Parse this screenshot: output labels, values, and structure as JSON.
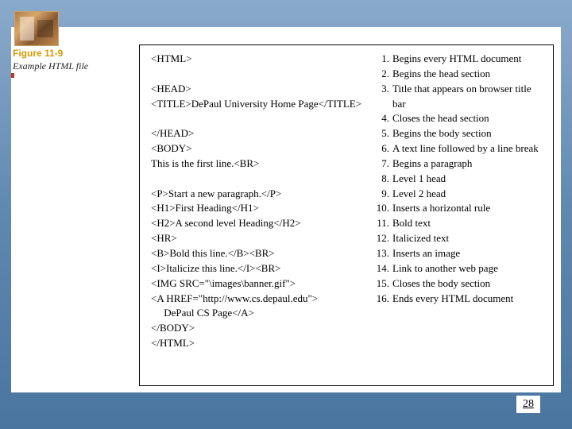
{
  "figure": {
    "label": "Figure 11-9",
    "subtitle": "Example HTML file"
  },
  "code": [
    "<HTML>",
    "",
    "<HEAD>",
    "<TITLE>DePaul University Home Page</TITLE>",
    "",
    "</HEAD>",
    "<BODY>",
    "This is the first line.<BR>",
    "",
    "<P>Start a new paragraph.</P>",
    "<H1>First Heading</H1>",
    "<H2>A second level Heading</H2>",
    "<HR>",
    "<B>Bold this line.</B><BR>",
    "<I>Italicize this line.</I><BR>",
    "<IMG SRC=\"\\images\\banner.gif\">",
    "<A HREF=\"http://www.cs.depaul.edu\">",
    "     DePaul CS Page</A>",
    "</BODY>",
    "</HTML>"
  ],
  "desc": [
    {
      "n": "1.",
      "rows": 2,
      "t": "Begins every HTML document"
    },
    {
      "n": "2.",
      "rows": 1,
      "t": "Begins the head section"
    },
    {
      "n": "3.",
      "rows": 2,
      "t": "Title that appears on browser title bar"
    },
    {
      "n": "4.",
      "rows": 1,
      "t": "Closes the head section"
    },
    {
      "n": "5.",
      "rows": 1,
      "t": "Begins the body section"
    },
    {
      "n": "6.",
      "rows": 2,
      "t": "A text line followed by a line break"
    },
    {
      "n": "7.",
      "rows": 1,
      "t": "Begins a paragraph"
    },
    {
      "n": "8.",
      "rows": 1,
      "t": "Level 1 head"
    },
    {
      "n": "9.",
      "rows": 1,
      "t": "Level 2 head"
    },
    {
      "n": "10.",
      "rows": 1,
      "t": "Inserts a horizontal rule"
    },
    {
      "n": "11.",
      "rows": 1,
      "t": "Bold text"
    },
    {
      "n": "12.",
      "rows": 1,
      "t": "Italicized text"
    },
    {
      "n": "13.",
      "rows": 1,
      "t": "Inserts an image"
    },
    {
      "n": "14.",
      "rows": 1,
      "t": "Link to another web page"
    },
    {
      "n": "",
      "rows": 1,
      "t": ""
    },
    {
      "n": "15.",
      "rows": 1,
      "t": "Closes the body section"
    },
    {
      "n": "16.",
      "rows": 2,
      "t": "Ends every HTML document"
    }
  ],
  "page_number": "28",
  "colors": {
    "figure_label": "#d49a00",
    "border": "#000000",
    "bg_top": "#8aaacb",
    "bg_bottom": "#4a759f"
  }
}
